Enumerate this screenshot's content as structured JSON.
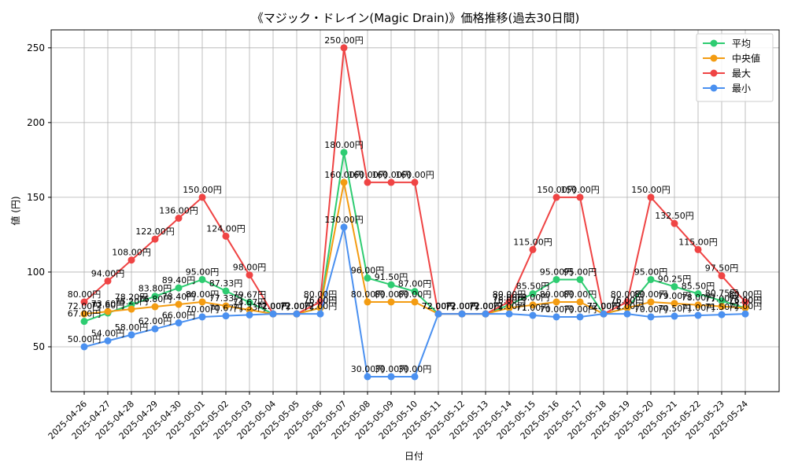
{
  "chart_data": {
    "type": "line",
    "title": "《マジック・ドレイン(Magic Drain)》価格推移(過去30日間)",
    "xlabel": "日付",
    "ylabel": "値 (円)",
    "ylim": [
      20,
      262
    ],
    "yticks": [
      50,
      100,
      150,
      200,
      250
    ],
    "grid": true,
    "legend_position": "top-right",
    "value_suffix": "円",
    "categories": [
      "2025-04-26",
      "2025-04-27",
      "2025-04-28",
      "2025-04-29",
      "2025-04-30",
      "2025-05-01",
      "2025-05-02",
      "2025-05-03",
      "2025-05-04",
      "2025-05-05",
      "2025-05-06",
      "2025-05-07",
      "2025-05-08",
      "2025-05-09",
      "2025-05-10",
      "2025-05-11",
      "2025-05-12",
      "2025-05-13",
      "2025-05-14",
      "2025-05-15",
      "2025-05-16",
      "2025-05-17",
      "2025-05-18",
      "2025-05-19",
      "2025-05-20",
      "2025-05-21",
      "2025-05-22",
      "2025-05-23",
      "2025-05-24"
    ],
    "series": [
      {
        "name": "平均",
        "color": "#2ecc71",
        "values": [
          67.0,
          72.6,
          78.2,
          83.8,
          89.4,
          95.0,
          87.33,
          79.67,
          72.0,
          72.0,
          76.0,
          180.0,
          96.0,
          91.5,
          87.0,
          72.0,
          72.0,
          72.0,
          78.0,
          85.5,
          95.0,
          95.0,
          72.0,
          76.0,
          95.0,
          90.25,
          85.5,
          80.75,
          76.0
        ]
      },
      {
        "name": "中央値",
        "color": "#f39c12",
        "values": [
          72.0,
          73.6,
          75.2,
          76.8,
          78.4,
          80.0,
          77.33,
          74.67,
          72.0,
          72.0,
          76.0,
          160.0,
          80.0,
          80.0,
          80.0,
          72.0,
          72.0,
          72.0,
          76.0,
          78.0,
          80.0,
          80.0,
          72.0,
          76.0,
          80.0,
          79.0,
          78.0,
          77.0,
          76.0
        ]
      },
      {
        "name": "最大",
        "color": "#ef4444",
        "values": [
          80.0,
          94.0,
          108.0,
          122.0,
          136.0,
          150.0,
          124.0,
          98.0,
          72.0,
          72.0,
          80.0,
          250.0,
          160.0,
          160.0,
          160.0,
          72.0,
          72.0,
          72.0,
          80.0,
          115.0,
          150.0,
          150.0,
          72.0,
          80.0,
          150.0,
          132.5,
          115.0,
          97.5,
          80.0
        ]
      },
      {
        "name": "最小",
        "color": "#4a90f0",
        "values": [
          50.0,
          54.0,
          58.0,
          62.0,
          66.0,
          70.0,
          70.67,
          71.33,
          72.0,
          72.0,
          72.0,
          130.0,
          30.0,
          30.0,
          30.0,
          72.0,
          72.0,
          72.0,
          72.0,
          71.0,
          70.0,
          70.0,
          72.0,
          72.0,
          70.0,
          70.5,
          71.0,
          71.5,
          72.0
        ]
      }
    ]
  }
}
